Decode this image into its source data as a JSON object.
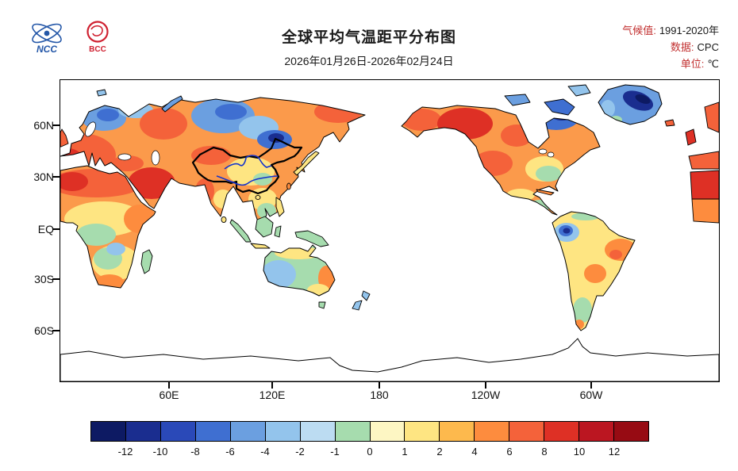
{
  "header": {
    "title": "全球平均气温距平分布图",
    "date_range": "2026年01月26日-2026年02月24日",
    "logos": [
      {
        "label": "NCC"
      },
      {
        "label": "BCC"
      }
    ],
    "meta": [
      {
        "label": "气候值:",
        "value": "1991-2020年"
      },
      {
        "label": "数据:",
        "value": "CPC"
      },
      {
        "label": "单位:",
        "value": "℃"
      }
    ]
  },
  "map": {
    "lat_labels": [
      "60N",
      "30N",
      "EQ",
      "30S",
      "60S"
    ],
    "lon_labels": [
      "60E",
      "120E",
      "180",
      "120W",
      "60W"
    ],
    "features": {
      "china_boundary": "bold black outline",
      "rivers": "Yellow River and Yangtze in blue"
    },
    "river_color": "#1433cc"
  },
  "colorbar": {
    "tick_labels": [
      "-12",
      "-10",
      "-8",
      "-6",
      "-4",
      "-2",
      "-1",
      "0",
      "1",
      "2",
      "4",
      "6",
      "8",
      "10",
      "12"
    ],
    "colors": [
      "#0d1a63",
      "#1a2d8f",
      "#2a49b8",
      "#3f6fd1",
      "#6b9fe0",
      "#93c4ec",
      "#bcdcf2",
      "#a6dcae",
      "#fdf6c3",
      "#fee582",
      "#fdb94d",
      "#fd8c3e",
      "#f4623a",
      "#de3025",
      "#bb1621",
      "#970b13"
    ]
  }
}
